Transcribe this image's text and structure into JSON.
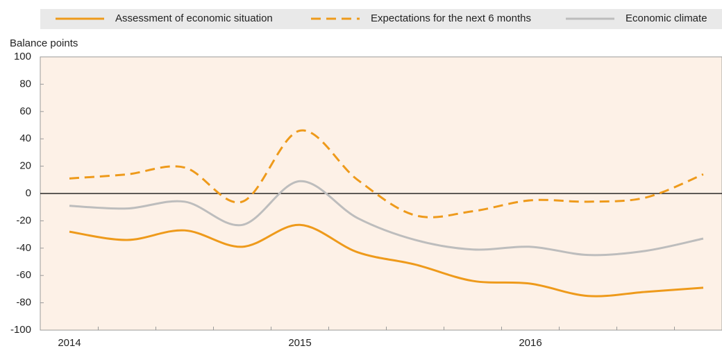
{
  "chart_data": {
    "type": "line",
    "y_label": "Balance points",
    "categories": [
      "2014",
      null,
      null,
      null,
      "2015",
      null,
      null,
      null,
      "2016",
      null,
      null,
      null
    ],
    "series": [
      {
        "name": "Assessment of economic situation",
        "color": "#ee9a1b",
        "dash": false,
        "values": [
          -28,
          -34,
          -27,
          -39,
          -23,
          -43,
          -52,
          -64,
          -66,
          -75,
          -72,
          -69
        ]
      },
      {
        "name": "Expectations for the next 6 months",
        "color": "#ee9a1b",
        "dash": true,
        "values": [
          11,
          14,
          19,
          -6,
          46,
          10,
          -16,
          -13,
          -5,
          -6,
          -3,
          14
        ]
      },
      {
        "name": "Economic climate",
        "color": "#bdbdbd",
        "dash": false,
        "values": [
          -9,
          -11,
          -6,
          -23,
          9,
          -18,
          -34,
          -41,
          -39,
          -45,
          -42,
          -33
        ]
      }
    ],
    "ylim": [
      -100,
      100
    ],
    "yticks": [
      -100,
      -80,
      -60,
      -40,
      -20,
      0,
      20,
      40,
      60,
      80,
      100
    ]
  }
}
